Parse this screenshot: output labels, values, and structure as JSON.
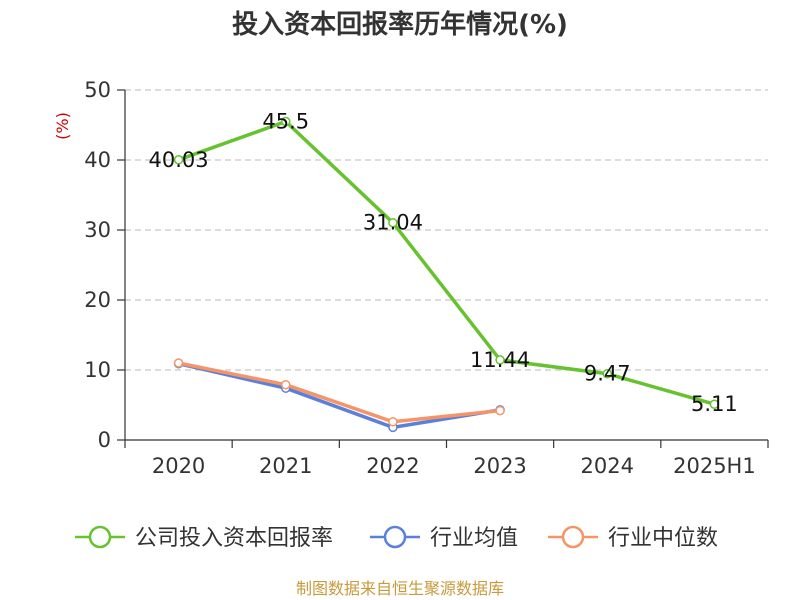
{
  "chart_data": {
    "type": "line",
    "title": "投入资本回报率历年情况(%)",
    "ylabel": "(%)",
    "categories": [
      "2020",
      "2021",
      "2022",
      "2023",
      "2024",
      "2025H1"
    ],
    "ylim": [
      0,
      50
    ],
    "yticks": [
      0,
      10,
      20,
      30,
      40,
      50
    ],
    "grid": true,
    "legend_position": "bottom",
    "series": [
      {
        "name": "公司投入资本回报率",
        "color": "#66c22e",
        "values": [
          40.03,
          45.5,
          31.04,
          11.44,
          9.47,
          5.11
        ],
        "labels": [
          "40.03",
          "45.5",
          "31.04",
          "11.44",
          "9.47",
          "5.11"
        ]
      },
      {
        "name": "行业均值",
        "color": "#5b7fdb",
        "values": [
          10.9,
          7.4,
          1.8,
          4.3,
          null,
          null
        ]
      },
      {
        "name": "行业中位数",
        "color": "#f59567",
        "values": [
          11.0,
          7.9,
          2.6,
          4.2,
          null,
          null
        ]
      }
    ]
  },
  "source": "制图数据来自恒生聚源数据库"
}
